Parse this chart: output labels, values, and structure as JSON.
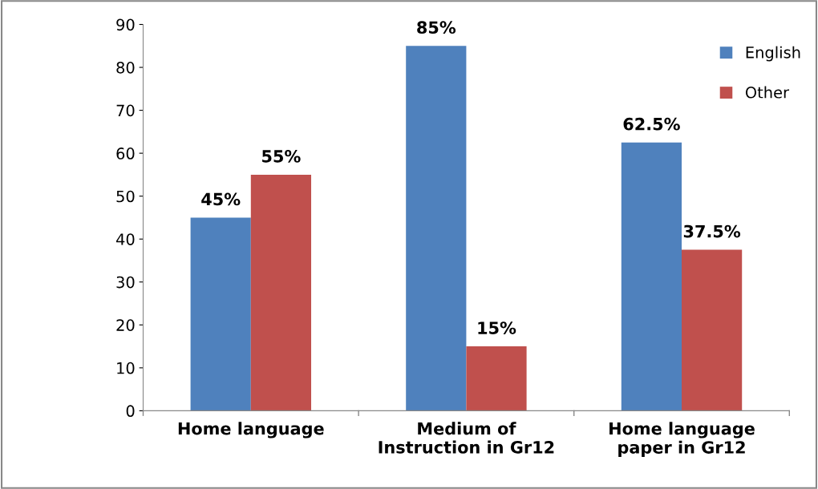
{
  "chart_data": {
    "type": "bar",
    "categories": [
      "Home language",
      "Medium of\nInstruction in Gr12",
      "Home language\npaper in Gr12"
    ],
    "series": [
      {
        "name": "English",
        "color": "#4f81bd",
        "values": [
          45,
          85,
          62.5
        ],
        "value_labels": [
          "45%",
          "85%",
          "62.5%"
        ]
      },
      {
        "name": "Other",
        "color": "#c0504d",
        "values": [
          55,
          15,
          37.5
        ],
        "value_labels": [
          "55%",
          "15%",
          "37.5%"
        ]
      }
    ],
    "ylim": [
      0,
      90
    ],
    "yticks": [
      0,
      10,
      20,
      30,
      40,
      50,
      60,
      70,
      80,
      90
    ],
    "grid": false,
    "legend": "top right"
  }
}
